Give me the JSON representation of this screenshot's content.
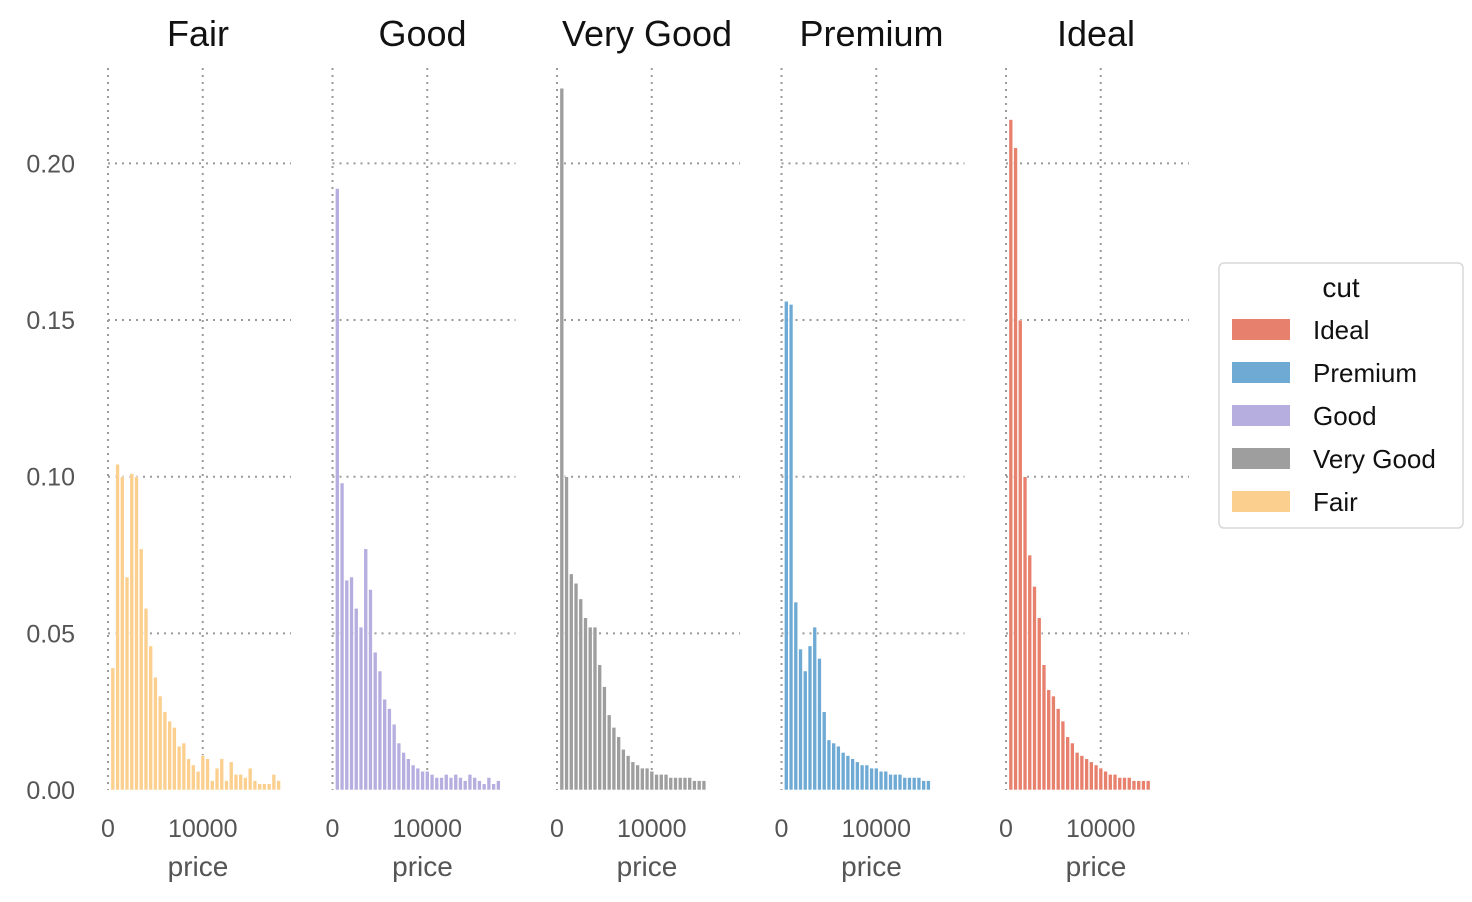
{
  "chart_data": {
    "type": "bar",
    "chart_kind": "faceted histogram",
    "xlabel": "price",
    "ylabel": "",
    "xlim": [
      0,
      19000
    ],
    "ylim": [
      0,
      0.233
    ],
    "x_ticks": [
      0,
      10000
    ],
    "x_tick_labels": [
      "0",
      "10000"
    ],
    "y_ticks": [
      0.0,
      0.05,
      0.1,
      0.15,
      0.2
    ],
    "y_tick_labels": [
      "0.00",
      "0.05",
      "0.10",
      "0.15",
      "0.20"
    ],
    "grid": true,
    "bin_width": 500,
    "bin_start": 300,
    "legend": {
      "title": "cut",
      "placement": "right",
      "entries": [
        {
          "label": "Ideal",
          "color": "#e8806e"
        },
        {
          "label": "Premium",
          "color": "#6eaad4"
        },
        {
          "label": "Good",
          "color": "#b7aee0"
        },
        {
          "label": "Very Good",
          "color": "#9e9e9e"
        },
        {
          "label": "Fair",
          "color": "#fbcf8e"
        }
      ]
    },
    "facets": [
      {
        "title": "Fair",
        "color": "#fbcf8e",
        "values": [
          0.039,
          0.104,
          0.1,
          0.068,
          0.101,
          0.1,
          0.077,
          0.058,
          0.046,
          0.036,
          0.03,
          0.025,
          0.022,
          0.02,
          0.014,
          0.015,
          0.01,
          0.008,
          0.006,
          0.011,
          0.01,
          0.003,
          0.007,
          0.01,
          0.003,
          0.009,
          0.005,
          0.005,
          0.004,
          0.007,
          0.003,
          0.002,
          0.002,
          0.002,
          0.005,
          0.003,
          0.0
        ]
      },
      {
        "title": "Good",
        "color": "#b7aee0",
        "values": [
          0.192,
          0.098,
          0.067,
          0.068,
          0.058,
          0.052,
          0.077,
          0.064,
          0.044,
          0.038,
          0.029,
          0.026,
          0.021,
          0.015,
          0.012,
          0.01,
          0.008,
          0.007,
          0.006,
          0.006,
          0.005,
          0.004,
          0.004,
          0.005,
          0.004,
          0.005,
          0.004,
          0.003,
          0.005,
          0.004,
          0.003,
          0.002,
          0.004,
          0.002,
          0.003,
          0.0
        ]
      },
      {
        "title": "Very Good",
        "color": "#9e9e9e",
        "values": [
          0.224,
          0.1,
          0.069,
          0.066,
          0.061,
          0.055,
          0.052,
          0.052,
          0.04,
          0.033,
          0.024,
          0.02,
          0.017,
          0.013,
          0.011,
          0.009,
          0.008,
          0.007,
          0.007,
          0.006,
          0.005,
          0.005,
          0.005,
          0.004,
          0.004,
          0.004,
          0.004,
          0.004,
          0.003,
          0.003,
          0.003,
          0.0
        ]
      },
      {
        "title": "Premium",
        "color": "#6eaad4",
        "values": [
          0.156,
          0.155,
          0.06,
          0.045,
          0.038,
          0.046,
          0.052,
          0.042,
          0.025,
          0.016,
          0.015,
          0.014,
          0.012,
          0.011,
          0.01,
          0.009,
          0.008,
          0.008,
          0.007,
          0.007,
          0.006,
          0.006,
          0.005,
          0.005,
          0.005,
          0.004,
          0.004,
          0.004,
          0.004,
          0.003,
          0.003,
          0.0
        ]
      },
      {
        "title": "Ideal",
        "color": "#e8806e",
        "values": [
          0.214,
          0.205,
          0.15,
          0.1,
          0.075,
          0.065,
          0.055,
          0.04,
          0.032,
          0.03,
          0.026,
          0.022,
          0.017,
          0.015,
          0.012,
          0.011,
          0.01,
          0.009,
          0.008,
          0.007,
          0.006,
          0.005,
          0.005,
          0.004,
          0.004,
          0.004,
          0.003,
          0.003,
          0.003,
          0.003,
          0.0
        ]
      }
    ]
  }
}
